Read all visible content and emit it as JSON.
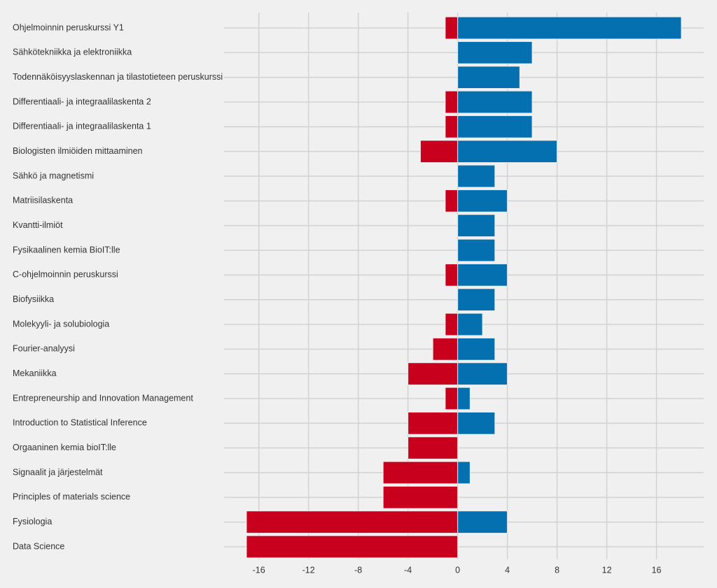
{
  "chart_data": {
    "type": "bar",
    "orientation": "horizontal",
    "stacked": false,
    "categories": [
      "Ohjelmoinnin peruskurssi Y1",
      "Sähkötekniikka ja elektroniikka",
      "Todennäköisyyslaskennan ja tilastotieteen peruskurssi",
      "Differentiaali- ja integraalilaskenta 2",
      "Differentiaali- ja integraalilaskenta 1",
      "Biologisten ilmiöiden mittaaminen",
      "Sähkö ja magnetismi",
      "Matriisilaskenta",
      "Kvantti-ilmiöt",
      "Fysikaalinen kemia BioIT:lle",
      "C-ohjelmoinnin peruskurssi",
      "Biofysiikka",
      "Molekyyli- ja solubiologia",
      "Fourier-analyysi",
      "Mekaniikka",
      "Entrepreneurship and Innovation Management",
      "Introduction to Statistical Inference",
      "Orgaaninen kemia bioIT:lle",
      "Signaalit ja järjestelmät",
      "Principles of materials science",
      "Fysiologia",
      "Data Science"
    ],
    "series": [
      {
        "color": "#c8001e",
        "values": [
          -1,
          0,
          0,
          -1,
          -1,
          -3,
          0,
          -1,
          0,
          0,
          -1,
          0,
          -1,
          -2,
          -4,
          -1,
          -4,
          -4,
          -6,
          -6,
          -17,
          -17
        ]
      },
      {
        "color": "#0570b0",
        "values": [
          18,
          6,
          5,
          6,
          6,
          8,
          3,
          4,
          3,
          3,
          4,
          3,
          2,
          3,
          4,
          1,
          3,
          0,
          1,
          0,
          4,
          0
        ]
      }
    ],
    "xlim": [
      -18.8,
      19.8
    ],
    "xticks": [
      -16,
      -12,
      -8,
      -4,
      0,
      4,
      8,
      12,
      16
    ],
    "grid": true
  }
}
